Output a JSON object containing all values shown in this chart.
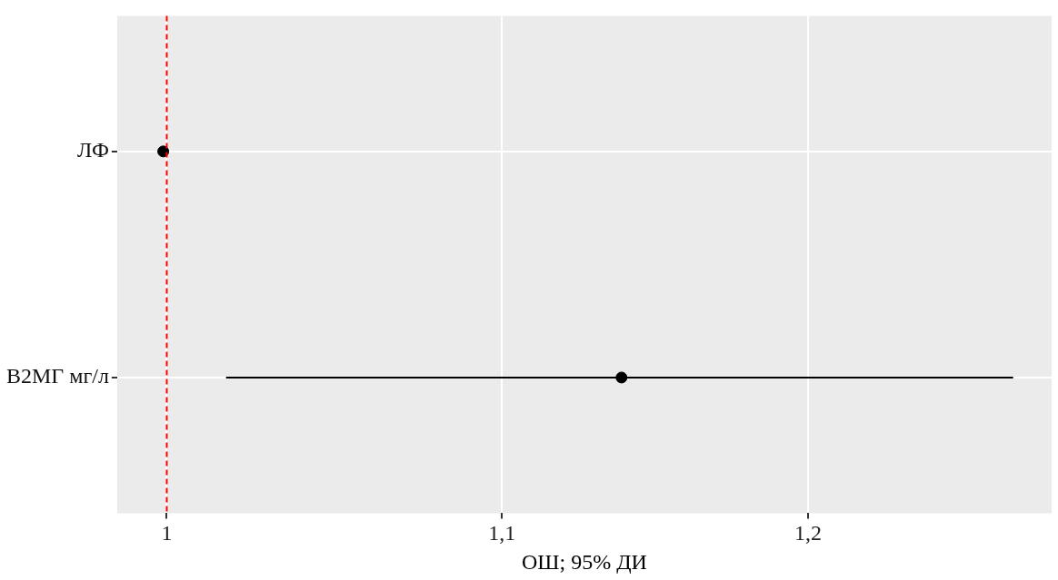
{
  "chart_data": {
    "type": "scatter",
    "orientation": "horizontal",
    "xlabel": "ОШ; 95% ДИ",
    "categories": [
      "ЛФ",
      "B2МГ мг/л"
    ],
    "values": [
      0.999,
      1.138
    ],
    "errors": [
      null,
      [
        1.017,
        1.272
      ]
    ],
    "color": "#000000",
    "marker": "circle",
    "log": "x",
    "grid": true,
    "legend": false,
    "xlim": [
      0.986,
      1.286
    ],
    "xticks": [
      {
        "value": 1,
        "label": "1"
      },
      {
        "value": 1.1,
        "label": "1,1"
      },
      {
        "value": 1.2,
        "label": "1,2"
      }
    ],
    "ref_lines": [
      {
        "axis": "x",
        "value": 1,
        "color": "#ff0000",
        "line_style": "dashed"
      }
    ]
  }
}
